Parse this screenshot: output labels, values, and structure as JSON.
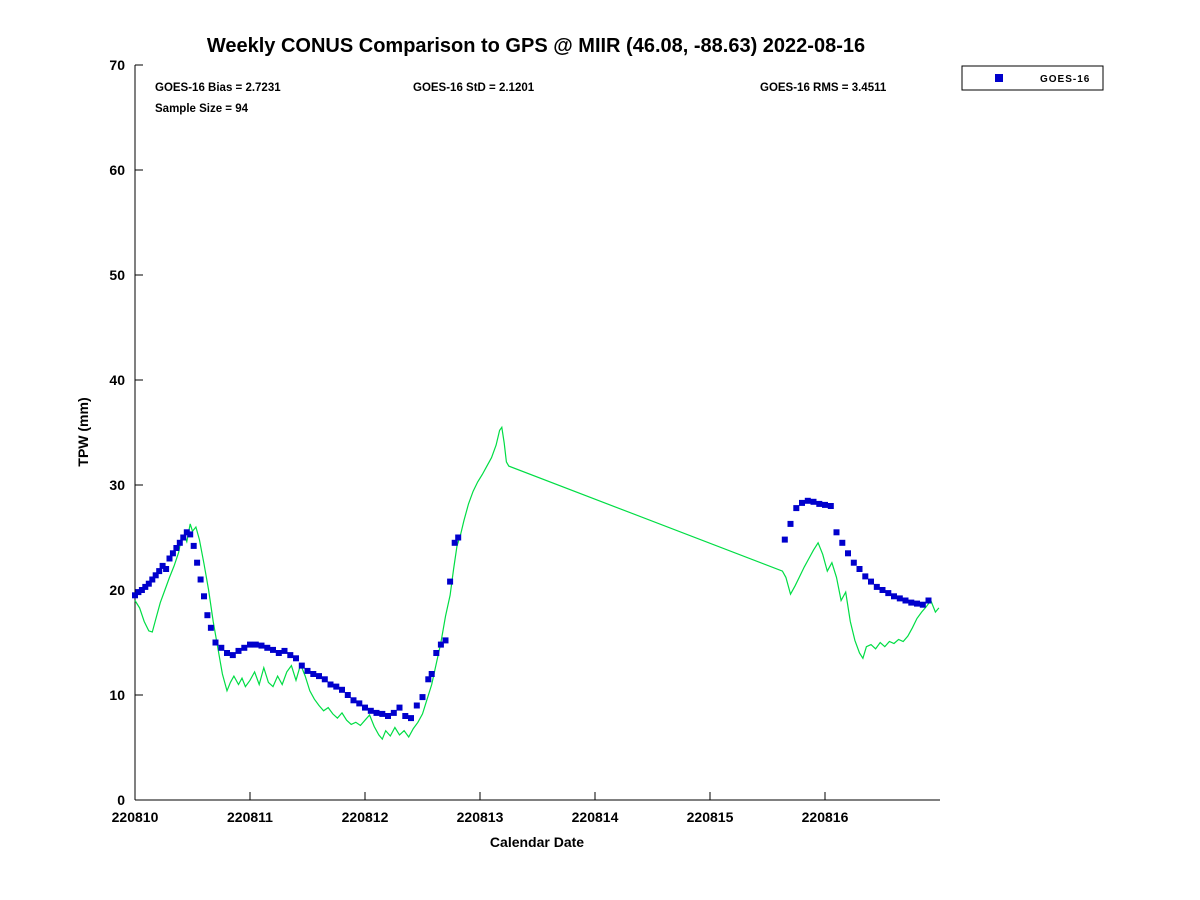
{
  "chart_data": {
    "type": "line",
    "title": "Weekly CONUS Comparison to GPS @ MIIR (46.08, -88.63) 2022-08-16",
    "xlabel": "Calendar Date",
    "ylabel": "TPW (mm)",
    "x_ticks": [
      "220810",
      "220811",
      "220812",
      "220813",
      "220814",
      "220815",
      "220816"
    ],
    "y_ticks": [
      0,
      10,
      20,
      30,
      40,
      50,
      60,
      70
    ],
    "xlim_days": [
      0,
      7
    ],
    "ylim": [
      0,
      70
    ],
    "x_unit": "days since 220810",
    "grid": false,
    "annotations": {
      "bias": "GOES-16 Bias = 2.7231",
      "std": "GOES-16 StD = 2.1201",
      "rms": "GOES-16 RMS = 3.4511",
      "sample": "Sample Size = 94"
    },
    "legend": {
      "position": "top-right-outside",
      "entries": [
        {
          "label": "GOES-16",
          "marker": "square",
          "color": "#0000cc"
        }
      ]
    },
    "colors": {
      "gps_line": "#00dd44",
      "goes_marker": "#0000cc",
      "axis": "#000000"
    },
    "series": [
      {
        "name": "GPS",
        "type": "line",
        "color": "#00dd44",
        "points": [
          [
            0.0,
            19.0
          ],
          [
            0.04,
            18.3
          ],
          [
            0.08,
            17.0
          ],
          [
            0.12,
            16.1
          ],
          [
            0.15,
            16.0
          ],
          [
            0.18,
            17.2
          ],
          [
            0.22,
            18.8
          ],
          [
            0.26,
            20.0
          ],
          [
            0.3,
            21.2
          ],
          [
            0.34,
            22.3
          ],
          [
            0.38,
            23.6
          ],
          [
            0.4,
            24.8
          ],
          [
            0.43,
            25.2
          ],
          [
            0.45,
            24.6
          ],
          [
            0.48,
            26.3
          ],
          [
            0.5,
            25.6
          ],
          [
            0.53,
            26.0
          ],
          [
            0.56,
            24.8
          ],
          [
            0.6,
            22.5
          ],
          [
            0.64,
            20.0
          ],
          [
            0.68,
            17.0
          ],
          [
            0.72,
            14.5
          ],
          [
            0.76,
            12.0
          ],
          [
            0.8,
            10.4
          ],
          [
            0.83,
            11.2
          ],
          [
            0.86,
            11.8
          ],
          [
            0.9,
            11.0
          ],
          [
            0.93,
            11.6
          ],
          [
            0.96,
            10.8
          ],
          [
            1.0,
            11.4
          ],
          [
            1.04,
            12.2
          ],
          [
            1.08,
            11.0
          ],
          [
            1.12,
            12.6
          ],
          [
            1.16,
            11.2
          ],
          [
            1.2,
            10.8
          ],
          [
            1.24,
            11.8
          ],
          [
            1.28,
            11.0
          ],
          [
            1.32,
            12.2
          ],
          [
            1.36,
            12.8
          ],
          [
            1.4,
            11.4
          ],
          [
            1.44,
            12.9
          ],
          [
            1.48,
            11.8
          ],
          [
            1.52,
            10.4
          ],
          [
            1.56,
            9.6
          ],
          [
            1.6,
            9.0
          ],
          [
            1.64,
            8.5
          ],
          [
            1.68,
            8.8
          ],
          [
            1.72,
            8.2
          ],
          [
            1.76,
            7.8
          ],
          [
            1.8,
            8.3
          ],
          [
            1.84,
            7.6
          ],
          [
            1.88,
            7.2
          ],
          [
            1.92,
            7.4
          ],
          [
            1.96,
            7.1
          ],
          [
            2.0,
            7.6
          ],
          [
            2.04,
            8.1
          ],
          [
            2.08,
            7.0
          ],
          [
            2.12,
            6.2
          ],
          [
            2.15,
            5.8
          ],
          [
            2.18,
            6.6
          ],
          [
            2.22,
            6.1
          ],
          [
            2.26,
            6.9
          ],
          [
            2.3,
            6.2
          ],
          [
            2.34,
            6.6
          ],
          [
            2.38,
            6.0
          ],
          [
            2.42,
            6.8
          ],
          [
            2.46,
            7.4
          ],
          [
            2.5,
            8.2
          ],
          [
            2.54,
            9.6
          ],
          [
            2.58,
            11.0
          ],
          [
            2.62,
            13.0
          ],
          [
            2.66,
            15.0
          ],
          [
            2.7,
            17.5
          ],
          [
            2.74,
            19.5
          ],
          [
            2.77,
            22.0
          ],
          [
            2.8,
            24.2
          ],
          [
            2.83,
            25.2
          ],
          [
            2.86,
            26.6
          ],
          [
            2.9,
            28.2
          ],
          [
            2.94,
            29.4
          ],
          [
            2.98,
            30.3
          ],
          [
            3.02,
            31.0
          ],
          [
            3.06,
            31.8
          ],
          [
            3.1,
            32.6
          ],
          [
            3.14,
            33.8
          ],
          [
            3.17,
            35.2
          ],
          [
            3.19,
            35.5
          ],
          [
            3.21,
            34.0
          ],
          [
            3.23,
            32.2
          ],
          [
            3.25,
            31.8
          ],
          [
            5.63,
            21.8
          ],
          [
            5.66,
            21.2
          ],
          [
            5.7,
            19.6
          ],
          [
            5.74,
            20.4
          ],
          [
            5.78,
            21.3
          ],
          [
            5.82,
            22.2
          ],
          [
            5.86,
            23.0
          ],
          [
            5.9,
            23.8
          ],
          [
            5.94,
            24.5
          ],
          [
            5.98,
            23.4
          ],
          [
            6.02,
            21.8
          ],
          [
            6.06,
            22.6
          ],
          [
            6.1,
            21.2
          ],
          [
            6.14,
            19.0
          ],
          [
            6.18,
            19.8
          ],
          [
            6.22,
            17.0
          ],
          [
            6.26,
            15.2
          ],
          [
            6.3,
            14.0
          ],
          [
            6.33,
            13.5
          ],
          [
            6.36,
            14.6
          ],
          [
            6.4,
            14.8
          ],
          [
            6.44,
            14.4
          ],
          [
            6.48,
            15.0
          ],
          [
            6.52,
            14.6
          ],
          [
            6.56,
            15.1
          ],
          [
            6.6,
            14.9
          ],
          [
            6.64,
            15.3
          ],
          [
            6.68,
            15.1
          ],
          [
            6.72,
            15.6
          ],
          [
            6.76,
            16.4
          ],
          [
            6.8,
            17.3
          ],
          [
            6.84,
            17.9
          ],
          [
            6.88,
            18.4
          ],
          [
            6.92,
            19.0
          ],
          [
            6.96,
            17.9
          ],
          [
            6.99,
            18.3
          ]
        ]
      },
      {
        "name": "GOES-16",
        "type": "scatter-square",
        "color": "#0000cc",
        "points": [
          [
            0.0,
            19.5
          ],
          [
            0.03,
            19.8
          ],
          [
            0.06,
            20.0
          ],
          [
            0.09,
            20.3
          ],
          [
            0.12,
            20.6
          ],
          [
            0.15,
            21.0
          ],
          [
            0.18,
            21.4
          ],
          [
            0.21,
            21.8
          ],
          [
            0.24,
            22.3
          ],
          [
            0.27,
            22.0
          ],
          [
            0.3,
            23.0
          ],
          [
            0.33,
            23.5
          ],
          [
            0.36,
            24.0
          ],
          [
            0.39,
            24.5
          ],
          [
            0.42,
            25.0
          ],
          [
            0.45,
            25.5
          ],
          [
            0.48,
            25.3
          ],
          [
            0.51,
            24.2
          ],
          [
            0.54,
            22.6
          ],
          [
            0.57,
            21.0
          ],
          [
            0.6,
            19.4
          ],
          [
            0.63,
            17.6
          ],
          [
            0.66,
            16.4
          ],
          [
            0.7,
            15.0
          ],
          [
            0.75,
            14.5
          ],
          [
            0.8,
            14.0
          ],
          [
            0.85,
            13.8
          ],
          [
            0.9,
            14.2
          ],
          [
            0.95,
            14.5
          ],
          [
            1.0,
            14.8
          ],
          [
            1.05,
            14.8
          ],
          [
            1.1,
            14.7
          ],
          [
            1.15,
            14.5
          ],
          [
            1.2,
            14.3
          ],
          [
            1.25,
            14.0
          ],
          [
            1.3,
            14.2
          ],
          [
            1.35,
            13.8
          ],
          [
            1.4,
            13.5
          ],
          [
            1.45,
            12.8
          ],
          [
            1.5,
            12.3
          ],
          [
            1.55,
            12.0
          ],
          [
            1.6,
            11.8
          ],
          [
            1.65,
            11.5
          ],
          [
            1.7,
            11.0
          ],
          [
            1.75,
            10.8
          ],
          [
            1.8,
            10.5
          ],
          [
            1.85,
            10.0
          ],
          [
            1.9,
            9.5
          ],
          [
            1.95,
            9.2
          ],
          [
            2.0,
            8.8
          ],
          [
            2.05,
            8.5
          ],
          [
            2.1,
            8.3
          ],
          [
            2.15,
            8.2
          ],
          [
            2.2,
            8.0
          ],
          [
            2.25,
            8.3
          ],
          [
            2.3,
            8.8
          ],
          [
            2.35,
            8.0
          ],
          [
            2.4,
            7.8
          ],
          [
            2.45,
            9.0
          ],
          [
            2.5,
            9.8
          ],
          [
            2.55,
            11.5
          ],
          [
            2.58,
            12.0
          ],
          [
            2.62,
            14.0
          ],
          [
            2.66,
            14.8
          ],
          [
            2.7,
            15.2
          ],
          [
            2.74,
            20.8
          ],
          [
            2.78,
            24.5
          ],
          [
            2.81,
            25.0
          ],
          [
            5.65,
            24.8
          ],
          [
            5.7,
            26.3
          ],
          [
            5.75,
            27.8
          ],
          [
            5.8,
            28.3
          ],
          [
            5.85,
            28.5
          ],
          [
            5.9,
            28.4
          ],
          [
            5.95,
            28.2
          ],
          [
            6.0,
            28.1
          ],
          [
            6.05,
            28.0
          ],
          [
            6.1,
            25.5
          ],
          [
            6.15,
            24.5
          ],
          [
            6.2,
            23.5
          ],
          [
            6.25,
            22.6
          ],
          [
            6.3,
            22.0
          ],
          [
            6.35,
            21.3
          ],
          [
            6.4,
            20.8
          ],
          [
            6.45,
            20.3
          ],
          [
            6.5,
            20.0
          ],
          [
            6.55,
            19.7
          ],
          [
            6.6,
            19.4
          ],
          [
            6.65,
            19.2
          ],
          [
            6.7,
            19.0
          ],
          [
            6.75,
            18.8
          ],
          [
            6.8,
            18.7
          ],
          [
            6.85,
            18.6
          ],
          [
            6.9,
            19.0
          ]
        ]
      }
    ]
  }
}
